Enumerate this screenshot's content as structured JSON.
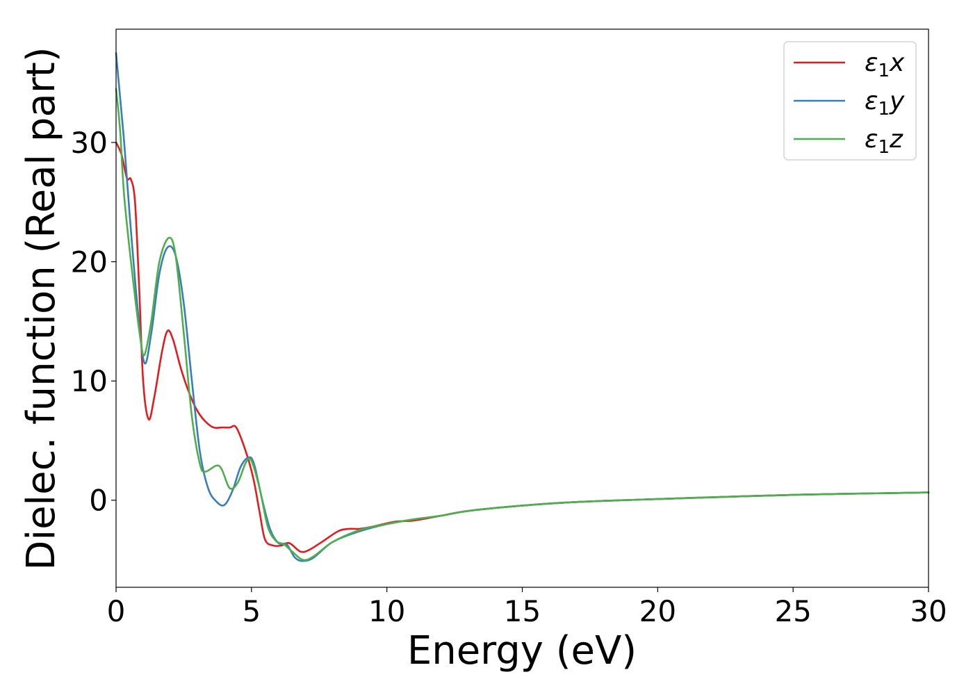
{
  "chart_data": {
    "type": "line",
    "title": "",
    "xlabel": "Energy (eV)",
    "ylabel": "Dielec. function (Real part)",
    "xlim": [
      0,
      30
    ],
    "ylim": [
      -7.3,
      39.5
    ],
    "xticks": [
      0,
      5,
      10,
      15,
      20,
      25,
      30
    ],
    "yticks": [
      0,
      10,
      20,
      30
    ],
    "grid": false,
    "legend_position": "top-right",
    "series": [
      {
        "name": "ε1x",
        "legend_base": "ε",
        "legend_sub": "1",
        "legend_suffix": "x",
        "color": "#e41a1c",
        "points": [
          [
            0,
            30
          ],
          [
            0.2,
            29
          ],
          [
            0.4,
            27
          ],
          [
            0.55,
            26.9
          ],
          [
            0.7,
            25
          ],
          [
            0.85,
            18
          ],
          [
            1.0,
            10
          ],
          [
            1.2,
            6.8
          ],
          [
            1.4,
            8.5
          ],
          [
            1.7,
            12.5
          ],
          [
            1.9,
            14.2
          ],
          [
            2.1,
            13.5
          ],
          [
            2.4,
            11
          ],
          [
            2.7,
            9
          ],
          [
            3.0,
            7.5
          ],
          [
            3.3,
            6.6
          ],
          [
            3.6,
            6.1
          ],
          [
            3.9,
            6.1
          ],
          [
            4.2,
            6.1
          ],
          [
            4.4,
            6.2
          ],
          [
            4.6,
            5.3
          ],
          [
            4.9,
            3.3
          ],
          [
            5.1,
            1.5
          ],
          [
            5.3,
            -1
          ],
          [
            5.5,
            -3.3
          ],
          [
            5.8,
            -3.8
          ],
          [
            6.1,
            -3.8
          ],
          [
            6.4,
            -3.6
          ],
          [
            6.8,
            -4.3
          ],
          [
            7.1,
            -4.2
          ],
          [
            7.6,
            -3.5
          ],
          [
            8.2,
            -2.6
          ],
          [
            8.6,
            -2.4
          ],
          [
            9.0,
            -2.4
          ],
          [
            9.5,
            -2.2
          ],
          [
            10.3,
            -1.8
          ],
          [
            11.0,
            -1.7
          ],
          [
            12,
            -1.3
          ],
          [
            13,
            -0.9
          ],
          [
            15,
            -0.45
          ],
          [
            17,
            -0.15
          ],
          [
            20,
            0.1
          ],
          [
            25,
            0.45
          ],
          [
            30,
            0.65
          ]
        ]
      },
      {
        "name": "ε1y",
        "legend_base": "ε",
        "legend_sub": "1",
        "legend_suffix": "y",
        "color": "#377eb8",
        "points": [
          [
            0,
            37.5
          ],
          [
            0.1,
            35
          ],
          [
            0.3,
            30
          ],
          [
            0.5,
            24
          ],
          [
            0.8,
            16
          ],
          [
            1.05,
            11.5
          ],
          [
            1.3,
            14
          ],
          [
            1.6,
            19
          ],
          [
            1.9,
            21.2
          ],
          [
            2.2,
            20.5
          ],
          [
            2.5,
            16.5
          ],
          [
            2.8,
            10
          ],
          [
            3.1,
            4
          ],
          [
            3.4,
            1
          ],
          [
            3.7,
            -0.1
          ],
          [
            4.0,
            -0.4
          ],
          [
            4.3,
            0.8
          ],
          [
            4.6,
            2.8
          ],
          [
            4.9,
            3.6
          ],
          [
            5.1,
            3
          ],
          [
            5.4,
            0
          ],
          [
            5.7,
            -2.5
          ],
          [
            6.0,
            -3.6
          ],
          [
            6.3,
            -3.7
          ],
          [
            6.6,
            -4.8
          ],
          [
            6.9,
            -5.1
          ],
          [
            7.3,
            -4.8
          ],
          [
            8,
            -3.5
          ],
          [
            9,
            -2.6
          ],
          [
            10,
            -2.0
          ],
          [
            11,
            -1.6
          ],
          [
            12,
            -1.3
          ],
          [
            13,
            -0.9
          ],
          [
            15,
            -0.45
          ],
          [
            17,
            -0.15
          ],
          [
            20,
            0.1
          ],
          [
            25,
            0.45
          ],
          [
            30,
            0.65
          ]
        ]
      },
      {
        "name": "ε1z",
        "legend_base": "ε",
        "legend_sub": "1",
        "legend_suffix": "z",
        "color": "#4daf4a",
        "points": [
          [
            0,
            34.5
          ],
          [
            0.15,
            31
          ],
          [
            0.3,
            25.5
          ],
          [
            0.6,
            19
          ],
          [
            0.9,
            13.5
          ],
          [
            1.05,
            12.2
          ],
          [
            1.3,
            15
          ],
          [
            1.6,
            20
          ],
          [
            1.95,
            22
          ],
          [
            2.2,
            20.5
          ],
          [
            2.5,
            14
          ],
          [
            2.8,
            7
          ],
          [
            3.1,
            3
          ],
          [
            3.3,
            2.4
          ],
          [
            3.7,
            2.9
          ],
          [
            3.9,
            2.6
          ],
          [
            4.2,
            1
          ],
          [
            4.5,
            1.5
          ],
          [
            4.8,
            3.2
          ],
          [
            5.0,
            3.3
          ],
          [
            5.3,
            1
          ],
          [
            5.6,
            -2.2
          ],
          [
            5.9,
            -3.4
          ],
          [
            6.2,
            -3.7
          ],
          [
            6.5,
            -4.3
          ],
          [
            6.9,
            -5.0
          ],
          [
            7.3,
            -4.7
          ],
          [
            8,
            -3.5
          ],
          [
            9,
            -2.5
          ],
          [
            10,
            -2.0
          ],
          [
            11,
            -1.6
          ],
          [
            12,
            -1.3
          ],
          [
            13,
            -0.9
          ],
          [
            15,
            -0.45
          ],
          [
            17,
            -0.15
          ],
          [
            20,
            0.1
          ],
          [
            25,
            0.45
          ],
          [
            30,
            0.65
          ]
        ]
      }
    ]
  }
}
